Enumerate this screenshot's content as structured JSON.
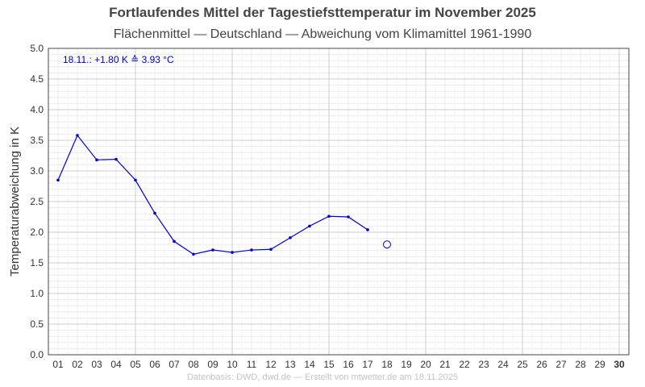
{
  "chart_data": {
    "type": "line",
    "title": "Fortlaufendes Mittel der Tagestiefsttemperatur im November 2025",
    "subtitle": "Flächenmittel — Deutschland — Abweichung vom Klimamittel 1961-1990",
    "ylabel": "Temperaturabweichung in K",
    "ylim": [
      0,
      5
    ],
    "y_ticks": [
      "0.0",
      "0.5",
      "1.0",
      "1.5",
      "2.0",
      "2.5",
      "3.0",
      "3.5",
      "4.0",
      "4.5",
      "5.0"
    ],
    "x_ticks": [
      "01",
      "02",
      "03",
      "04",
      "05",
      "06",
      "07",
      "08",
      "09",
      "10",
      "11",
      "12",
      "13",
      "14",
      "15",
      "16",
      "17",
      "18",
      "19",
      "20",
      "21",
      "22",
      "23",
      "24",
      "25",
      "26",
      "27",
      "28",
      "29",
      "30"
    ],
    "grid": true,
    "series": [
      {
        "x": [
          1,
          2,
          3,
          4,
          5,
          6,
          7,
          8,
          9,
          10,
          11,
          12,
          13,
          14,
          15,
          16,
          17
        ],
        "values": [
          2.85,
          3.58,
          3.18,
          3.19,
          2.85,
          2.31,
          1.85,
          1.64,
          1.71,
          1.67,
          1.71,
          1.72,
          1.91,
          2.1,
          2.26,
          2.25,
          2.04
        ],
        "color": "#0000cc"
      }
    ],
    "highlight_point": {
      "x": 18,
      "value": 1.8,
      "color": "#0000cc"
    },
    "annotation": "18.11.: +1.80 K ≙ 3.93 °C",
    "footer": "Datenbasis: DWD, dwd.de — Erstellt von mtwetter.de am 18.11.2025"
  }
}
